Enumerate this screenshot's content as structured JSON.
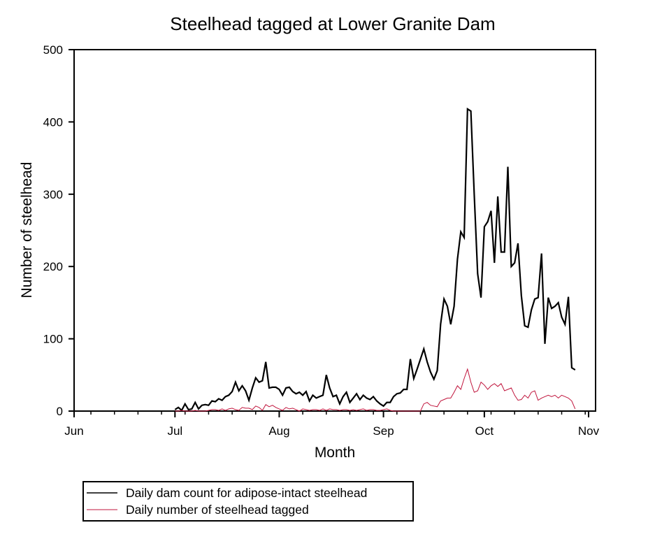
{
  "chart_data": {
    "type": "line",
    "title": "Steelhead tagged at Lower Granite Dam",
    "xlabel": "Month",
    "ylabel": "Number of steelhead",
    "ylim": [
      0,
      500
    ],
    "yticks": [
      0,
      100,
      200,
      300,
      400,
      500
    ],
    "x_unit": "day index from Jun 1",
    "xlim": [
      0,
      153
    ],
    "xticks": [
      {
        "label": "Jun",
        "day": 0
      },
      {
        "label": "Jul",
        "day": 30
      },
      {
        "label": "Aug",
        "day": 61
      },
      {
        "label": "Sep",
        "day": 92
      },
      {
        "label": "Oct",
        "day": 122
      },
      {
        "label": "Nov",
        "day": 153
      }
    ],
    "minor_tick_interval_days": 7,
    "grid": false,
    "legend_position": "bottom-left, below plot",
    "series": [
      {
        "name": "Daily dam count for adipose-intact steelhead",
        "color": "#000000",
        "start_day": 30,
        "values": [
          2,
          5,
          1,
          10,
          2,
          3,
          12,
          3,
          8,
          9,
          8,
          14,
          13,
          17,
          15,
          20,
          22,
          27,
          40,
          28,
          35,
          28,
          15,
          32,
          46,
          40,
          42,
          68,
          32,
          33,
          33,
          30,
          22,
          32,
          33,
          27,
          24,
          26,
          22,
          27,
          14,
          22,
          18,
          20,
          22,
          50,
          32,
          20,
          22,
          10,
          20,
          26,
          12,
          18,
          24,
          16,
          22,
          18,
          16,
          20,
          14,
          10,
          7,
          12,
          12,
          20,
          24,
          25,
          30,
          30,
          72,
          45,
          58,
          72,
          86,
          68,
          54,
          44,
          56,
          120,
          155,
          145,
          120,
          145,
          210,
          248,
          240,
          418,
          415,
          300,
          190,
          157,
          255,
          262,
          277,
          205,
          297,
          220,
          220,
          338,
          200,
          205,
          232,
          160,
          118,
          116,
          140,
          155,
          157,
          218,
          93,
          157,
          142,
          145,
          150,
          130,
          120,
          158,
          60,
          57
        ]
      },
      {
        "name": "Daily number of steelhead tagged",
        "color": "#c0143c",
        "start_day": 30,
        "values": [
          0,
          0,
          1,
          0,
          0,
          0,
          1,
          0,
          0,
          0,
          1,
          2,
          2,
          1,
          3,
          1,
          3,
          4,
          2,
          1,
          5,
          4,
          4,
          2,
          7,
          5,
          1,
          9,
          6,
          8,
          5,
          3,
          1,
          5,
          3,
          4,
          2,
          0,
          3,
          2,
          1,
          2,
          2,
          1,
          3,
          1,
          3,
          2,
          2,
          1,
          2,
          2,
          1,
          2,
          1,
          2,
          3,
          1,
          2,
          2,
          1,
          1,
          2,
          3,
          1,
          0,
          0,
          0,
          0,
          0,
          0,
          0,
          0,
          0,
          10,
          12,
          8,
          7,
          6,
          14,
          16,
          18,
          18,
          26,
          35,
          30,
          45,
          58,
          40,
          26,
          28,
          40,
          36,
          30,
          35,
          38,
          34,
          38,
          28,
          30,
          32,
          22,
          15,
          16,
          22,
          18,
          26,
          28,
          15,
          18,
          20,
          22,
          20,
          22,
          18,
          22,
          20,
          18,
          14,
          3
        ]
      }
    ]
  }
}
